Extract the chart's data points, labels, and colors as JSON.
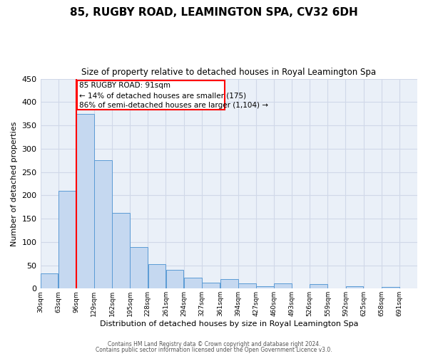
{
  "title": "85, RUGBY ROAD, LEAMINGTON SPA, CV32 6DH",
  "subtitle": "Size of property relative to detached houses in Royal Leamington Spa",
  "xlabel": "Distribution of detached houses by size in Royal Leamington Spa",
  "ylabel": "Number of detached properties",
  "footer_lines": [
    "Contains HM Land Registry data © Crown copyright and database right 2024.",
    "Contains public sector information licensed under the Open Government Licence v3.0."
  ],
  "bar_left_edges": [
    30,
    63,
    96,
    129,
    162,
    195,
    228,
    261,
    294,
    327,
    361,
    394,
    427,
    460,
    493,
    526,
    559,
    592,
    625,
    658
  ],
  "bar_heights": [
    33,
    210,
    375,
    275,
    162,
    89,
    53,
    40,
    23,
    13,
    20,
    11,
    5,
    11,
    0,
    10,
    0,
    5,
    0,
    3
  ],
  "bin_width": 33,
  "tick_labels": [
    "30sqm",
    "63sqm",
    "96sqm",
    "129sqm",
    "162sqm",
    "195sqm",
    "228sqm",
    "261sqm",
    "294sqm",
    "327sqm",
    "361sqm",
    "394sqm",
    "427sqm",
    "460sqm",
    "493sqm",
    "526sqm",
    "559sqm",
    "592sqm",
    "625sqm",
    "658sqm",
    "691sqm"
  ],
  "bar_face_color": "#c5d8f0",
  "bar_edge_color": "#5b9bd5",
  "grid_color": "#d0d8e8",
  "background_color": "#eaf0f8",
  "redline_x": 96,
  "annotation_text_line1": "85 RUGBY ROAD: 91sqm",
  "annotation_text_line2": "← 14% of detached houses are smaller (175)",
  "annotation_text_line3": "86% of semi-detached houses are larger (1,104) →",
  "ylim": [
    0,
    450
  ],
  "yticks": [
    0,
    50,
    100,
    150,
    200,
    250,
    300,
    350,
    400,
    450
  ]
}
